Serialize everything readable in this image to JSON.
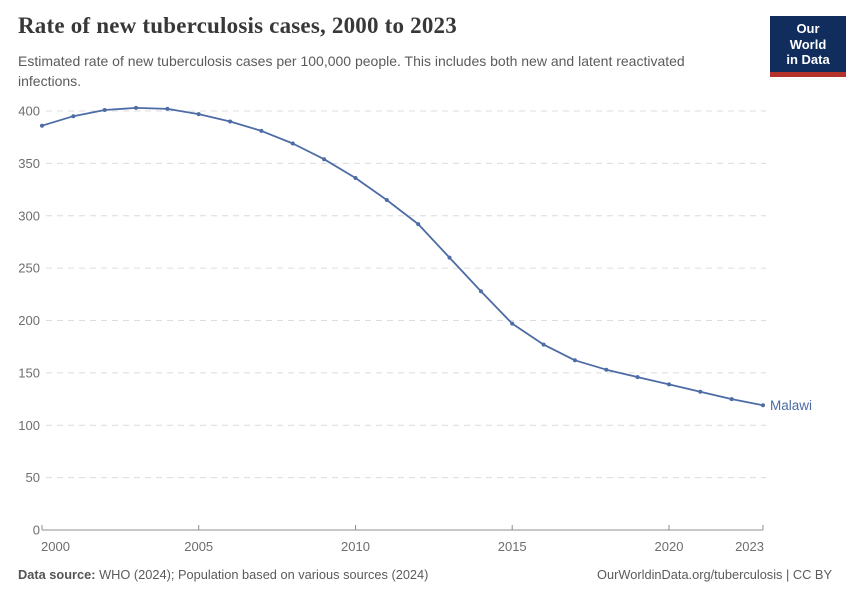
{
  "header": {
    "title": "Rate of new tuberculosis cases, 2000 to 2023",
    "subtitle": "Estimated rate of new tuberculosis cases per 100,000 people. This includes both new and latent reactivated infections.",
    "logo": {
      "line1": "Our World",
      "line2": "in Data",
      "bg_color": "#102d5e",
      "accent_color": "#b5322a"
    }
  },
  "chart_data": {
    "type": "line",
    "title": "Rate of new tuberculosis cases, 2000 to 2023",
    "x": [
      2000,
      2001,
      2002,
      2003,
      2004,
      2005,
      2006,
      2007,
      2008,
      2009,
      2010,
      2011,
      2012,
      2013,
      2014,
      2015,
      2016,
      2017,
      2018,
      2019,
      2020,
      2021,
      2022,
      2023
    ],
    "series": [
      {
        "name": "Malawi",
        "color": "#4d6ca6",
        "values": [
          386,
          395,
          401,
          403,
          402,
          397,
          390,
          381,
          369,
          354,
          336,
          315,
          292,
          260,
          228,
          197,
          177,
          162,
          153,
          146,
          139,
          132,
          125,
          119
        ]
      }
    ],
    "end_label": "Malawi",
    "xlabel": "",
    "ylabel": "",
    "x_ticks": [
      2000,
      2005,
      2010,
      2015,
      2020,
      2023
    ],
    "y_ticks": [
      0,
      50,
      100,
      150,
      200,
      250,
      300,
      350,
      400
    ],
    "xlim": [
      2000,
      2023
    ],
    "ylim": [
      0,
      400
    ],
    "grid": "horizontal-dashed",
    "legend_position": "end-of-line",
    "grid_color": "#dcdcdc",
    "axis_color": "#8f8f8f",
    "tick_label_color": "#6e6e6e"
  },
  "footer": {
    "source_label": "Data source:",
    "source_text": "WHO (2024); Population based on various sources (2024)",
    "link_text": "OurWorldinData.org/tuberculosis | CC BY"
  }
}
